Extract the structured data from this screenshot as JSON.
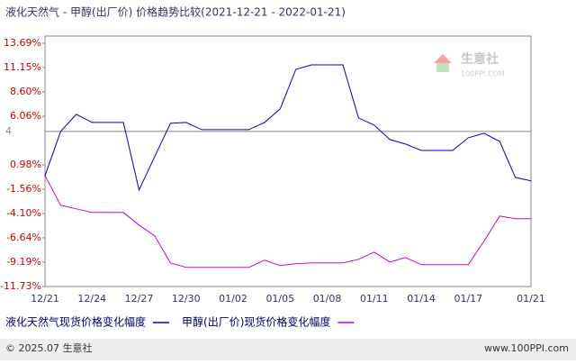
{
  "chart_data": {
    "type": "line",
    "title": "液化天然气 - 甲醇(出厂价) 价格趋势比较(2021-12-21 - 2022-01-21)",
    "categories": [
      "12/21",
      null,
      null,
      "12/24",
      null,
      null,
      "12/27",
      null,
      null,
      "12/30",
      null,
      null,
      "01/02",
      null,
      null,
      "01/05",
      null,
      null,
      "01/08",
      null,
      null,
      "01/11",
      null,
      null,
      "01/14",
      null,
      null,
      "01/17",
      null,
      null,
      null,
      "01/21"
    ],
    "series": [
      {
        "name": "液化天然气现货价格变化幅度",
        "color": "#0000cc",
        "values": [
          -0.14,
          4.47,
          6.26,
          5.41,
          5.41,
          5.41,
          -1.64,
          1.84,
          5.32,
          5.41,
          4.66,
          4.66,
          4.66,
          4.66,
          5.41,
          6.82,
          10.96,
          11.43,
          11.43,
          11.43,
          5.88,
          5.13,
          3.62,
          3.15,
          2.48,
          2.48,
          2.48,
          3.81,
          4.28,
          3.44,
          -0.33,
          -0.7
        ]
      },
      {
        "name": "甲醇(出厂价)现货价格变化幅度",
        "color": "#cc00cc",
        "values": [
          -0.14,
          -3.24,
          -3.62,
          -3.99,
          -3.99,
          -3.99,
          -5.31,
          -6.44,
          -9.26,
          -9.73,
          -9.73,
          -9.73,
          -9.73,
          -9.73,
          -8.98,
          -9.55,
          -9.36,
          -9.26,
          -9.26,
          -9.26,
          -8.89,
          -8.13,
          -9.17,
          -8.7,
          -9.45,
          -9.45,
          -9.45,
          -9.45,
          -7.01,
          -4.37,
          -4.65,
          -4.65
        ]
      }
    ],
    "ylim": [
      -11.73,
      14.44
    ],
    "yticks": [
      {
        "value": 13.69,
        "label": "13.69%"
      },
      {
        "value": 11.15,
        "label": "11.15%"
      },
      {
        "value": 8.6,
        "label": "8.60%"
      },
      {
        "value": 6.06,
        "label": "6.06%"
      },
      {
        "value": 0.98,
        "label": "0.98%"
      },
      {
        "value": -1.56,
        "label": "-1.56%"
      },
      {
        "value": -4.1,
        "label": "-4.10%"
      },
      {
        "value": -6.64,
        "label": "-6.64%"
      },
      {
        "value": -9.19,
        "label": "-9.19%"
      },
      {
        "value": -11.73,
        "label": "-11.73%"
      }
    ],
    "reference_line": {
      "value": 4.47,
      "label": "4"
    },
    "watermark": {
      "name": "生意社",
      "site": "100PPI.COM"
    },
    "footer": {
      "copyright": "© 2025.07 生意社",
      "site": "www.100PPI.com"
    }
  }
}
